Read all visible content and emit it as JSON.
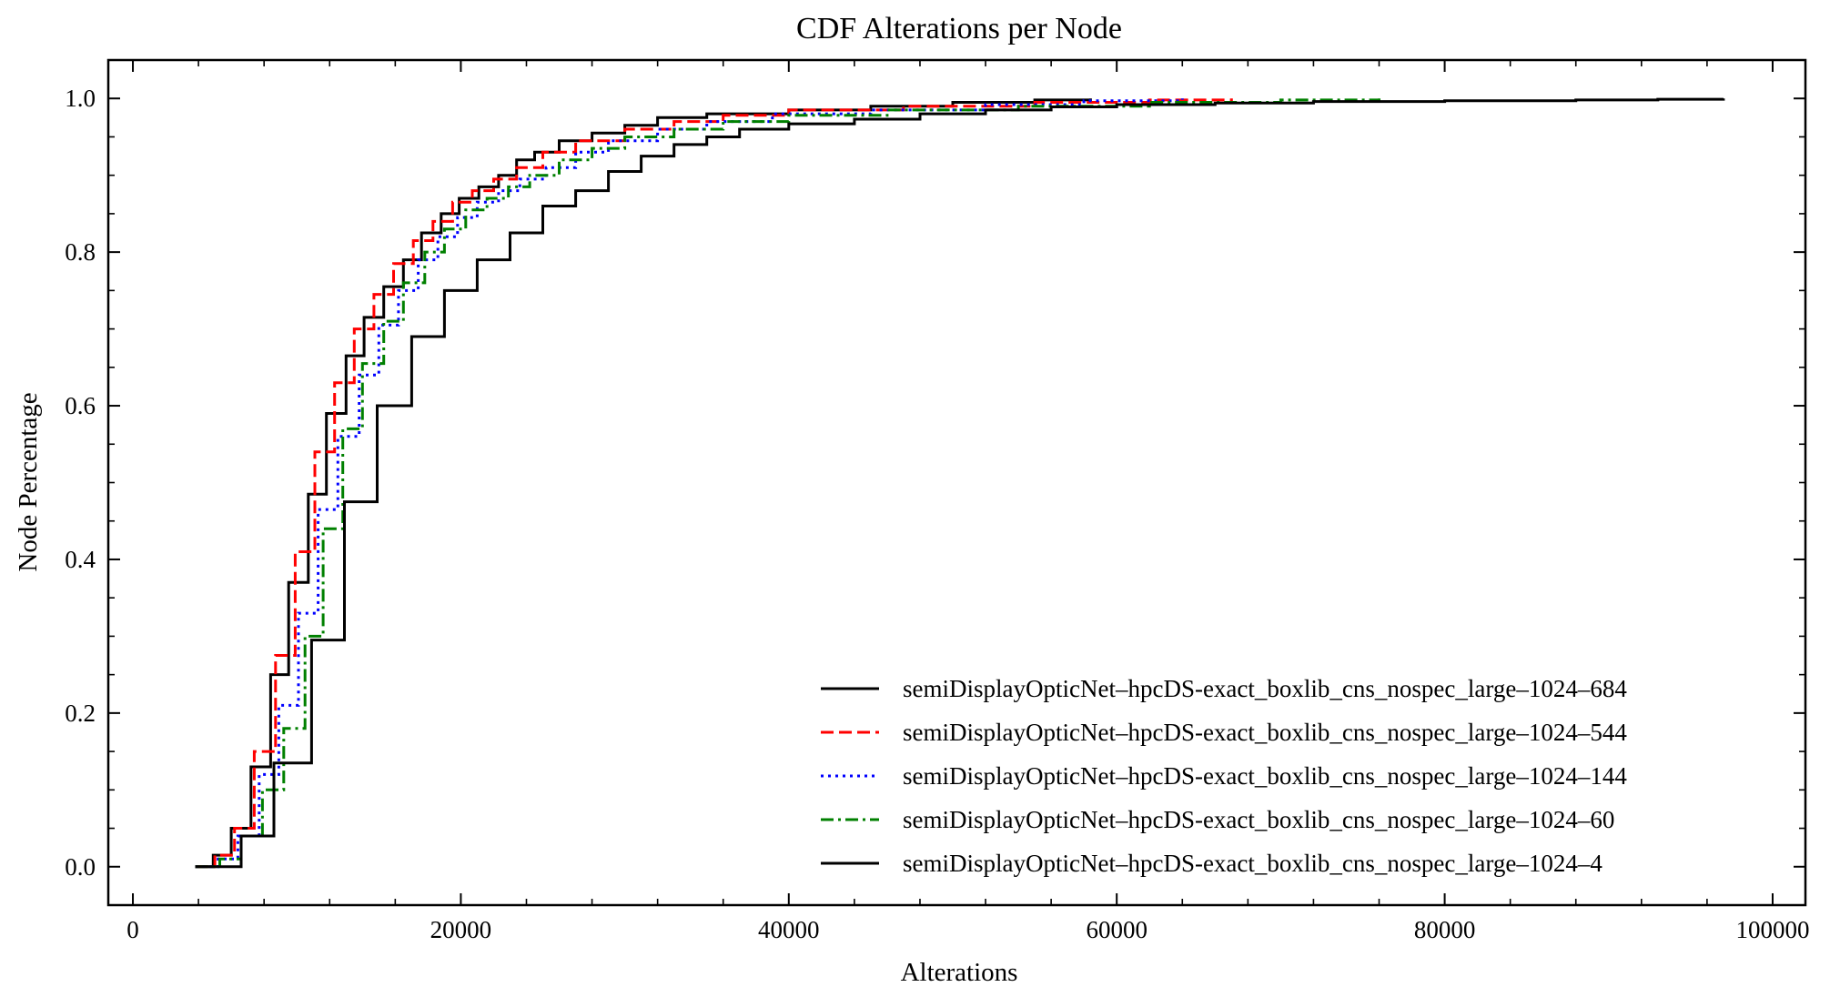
{
  "chart_data": {
    "type": "line",
    "step": true,
    "title": "CDF Alterations per Node",
    "xlabel": "Alterations",
    "ylabel": "Node Percentage",
    "xlim": [
      -1500,
      102000
    ],
    "ylim": [
      -0.05,
      1.05
    ],
    "xticks": [
      0,
      20000,
      40000,
      60000,
      80000,
      100000
    ],
    "xtick_labels": [
      "0",
      "20000",
      "40000",
      "60000",
      "80000",
      "100000"
    ],
    "yticks": [
      0.0,
      0.2,
      0.4,
      0.6,
      0.8,
      1.0
    ],
    "ytick_labels": [
      "0.0",
      "0.2",
      "0.4",
      "0.6",
      "0.8",
      "1.0"
    ],
    "grid": false,
    "legend_position": "lower-right",
    "series": [
      {
        "name": "semiDisplayOpticNet–hpcDS-exact_boxlib_cns_nospec_large–1024–684",
        "color": "#000000",
        "dash": "solid",
        "x": [
          3800,
          4900,
          6000,
          7200,
          8400,
          9500,
          10700,
          11800,
          13000,
          14100,
          15300,
          16500,
          17600,
          18800,
          19900,
          21100,
          22300,
          23400,
          24500,
          26000,
          28000,
          30000,
          32000,
          35000,
          40000,
          45000,
          50000,
          55000,
          58400
        ],
        "y": [
          0.0,
          0.015,
          0.05,
          0.13,
          0.25,
          0.37,
          0.485,
          0.59,
          0.665,
          0.715,
          0.755,
          0.79,
          0.825,
          0.85,
          0.87,
          0.885,
          0.9,
          0.92,
          0.93,
          0.945,
          0.955,
          0.965,
          0.975,
          0.98,
          0.985,
          0.99,
          0.995,
          0.998,
          1.0
        ]
      },
      {
        "name": "semiDisplayOpticNet–hpcDS-exact_boxlib_cns_nospec_large–1024–544",
        "color": "#ff0000",
        "dash": "dashed",
        "x": [
          3800,
          5000,
          6200,
          7400,
          8700,
          9900,
          11100,
          12300,
          13500,
          14700,
          15900,
          17100,
          18300,
          19500,
          20700,
          22000,
          23400,
          25000,
          27000,
          30000,
          33000,
          36000,
          40000,
          47000,
          55000,
          62000,
          67000
        ],
        "y": [
          0.0,
          0.015,
          0.05,
          0.15,
          0.275,
          0.41,
          0.54,
          0.63,
          0.7,
          0.745,
          0.785,
          0.815,
          0.84,
          0.865,
          0.88,
          0.895,
          0.91,
          0.93,
          0.945,
          0.96,
          0.97,
          0.978,
          0.985,
          0.99,
          0.995,
          0.998,
          1.0
        ]
      },
      {
        "name": "semiDisplayOpticNet–hpcDS-exact_boxlib_cns_nospec_large–1024–144",
        "color": "#0000ff",
        "dash": "dotted",
        "x": [
          3800,
          5200,
          6400,
          7700,
          8900,
          10100,
          11300,
          12500,
          13800,
          15000,
          16200,
          17400,
          18600,
          19800,
          21000,
          22300,
          23600,
          25200,
          27000,
          29000,
          32000,
          35000,
          39000,
          45000,
          52000,
          58000,
          64000
        ],
        "y": [
          0.0,
          0.01,
          0.04,
          0.12,
          0.21,
          0.33,
          0.465,
          0.56,
          0.64,
          0.705,
          0.75,
          0.79,
          0.82,
          0.845,
          0.865,
          0.88,
          0.895,
          0.91,
          0.93,
          0.945,
          0.96,
          0.97,
          0.98,
          0.985,
          0.992,
          0.997,
          1.0
        ]
      },
      {
        "name": "semiDisplayOpticNet–hpcDS-exact_boxlib_cns_nospec_large–1024–60",
        "color": "#008000",
        "dash": "dashdot",
        "x": [
          3800,
          5300,
          6600,
          7900,
          9200,
          10500,
          11600,
          12800,
          14000,
          15300,
          16500,
          17800,
          19000,
          20300,
          21600,
          22900,
          24200,
          26000,
          28000,
          30000,
          33000,
          36000,
          40000,
          46000,
          54000,
          62000,
          70000,
          76000
        ],
        "y": [
          0.0,
          0.01,
          0.04,
          0.1,
          0.18,
          0.3,
          0.44,
          0.57,
          0.655,
          0.71,
          0.76,
          0.8,
          0.83,
          0.855,
          0.87,
          0.885,
          0.9,
          0.92,
          0.935,
          0.95,
          0.96,
          0.97,
          0.978,
          0.985,
          0.99,
          0.995,
          0.998,
          1.0
        ]
      },
      {
        "name": "semiDisplayOpticNet–hpcDS-exact_boxlib_cns_nospec_large–1024–4",
        "color": "#000000",
        "dash": "solid",
        "x": [
          3800,
          6600,
          8600,
          10900,
          12900,
          14900,
          17000,
          19000,
          21000,
          23000,
          25000,
          27000,
          29000,
          31000,
          33000,
          35000,
          37000,
          40000,
          44000,
          48000,
          52000,
          56000,
          60000,
          66000,
          72000,
          80000,
          88000,
          93000,
          97000
        ],
        "y": [
          0.0,
          0.04,
          0.135,
          0.295,
          0.475,
          0.6,
          0.69,
          0.75,
          0.79,
          0.825,
          0.86,
          0.88,
          0.905,
          0.925,
          0.94,
          0.95,
          0.96,
          0.967,
          0.973,
          0.98,
          0.985,
          0.989,
          0.992,
          0.994,
          0.996,
          0.997,
          0.998,
          0.999,
          1.0
        ]
      }
    ]
  }
}
